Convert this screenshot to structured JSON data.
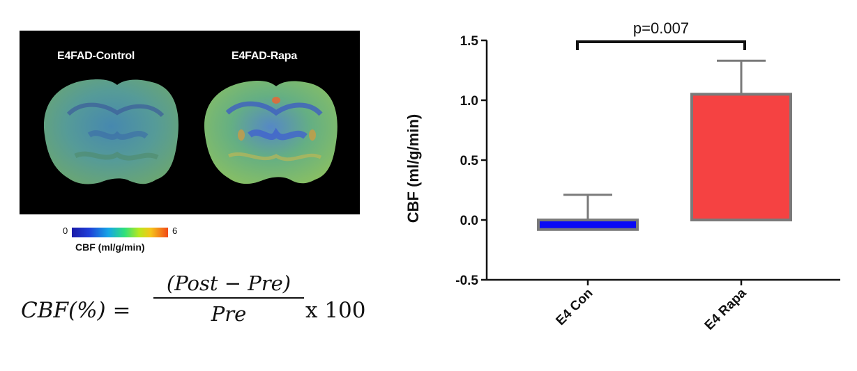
{
  "mri": {
    "label_left": "E4FAD-Control",
    "label_right": "E4FAD-Rapa"
  },
  "colorbar": {
    "min_label": "0",
    "max_label": "6",
    "title": "CBF (ml/g/min)",
    "colors": [
      "#1a1aa8",
      "#16a6e6",
      "#2fe07a",
      "#f5c41a",
      "#f24a18"
    ]
  },
  "formula": {
    "lhs": "CBF(%) =",
    "numerator": "(Post − Pre)",
    "denominator": "Pre",
    "rhs": "x 100"
  },
  "chart_data": {
    "type": "bar",
    "categories": [
      "E4 Con",
      "E4 Rapa"
    ],
    "values": [
      -0.08,
      1.05
    ],
    "errors": [
      0.29,
      0.28
    ],
    "colors": [
      "#0a0af5",
      "#f54242"
    ],
    "ylabel": "CBF (ml/g/min)",
    "xlabel": "",
    "ylim": [
      -0.5,
      1.5
    ],
    "yticks": [
      "-0.5",
      "0.0",
      "0.5",
      "1.0",
      "1.5"
    ],
    "annotation": "p=0.007"
  }
}
